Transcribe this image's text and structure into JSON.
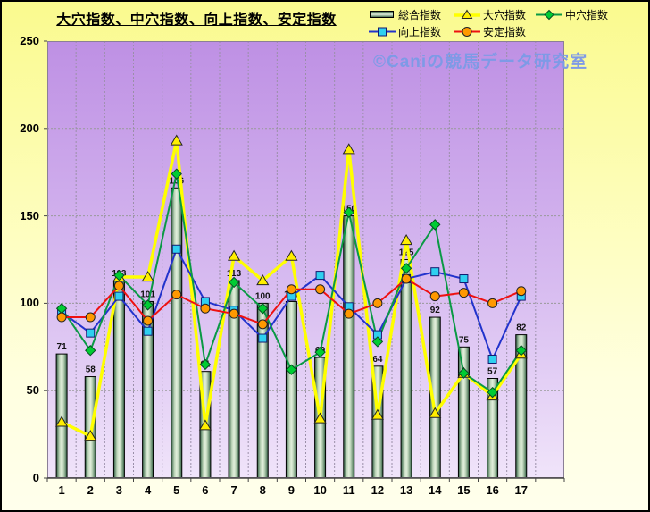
{
  "title": "大穴指数、中穴指数、向上指数、安定指数",
  "watermark": {
    "text": "©Caniの競馬データ研究室",
    "color": "#7e9ae6"
  },
  "chart_data": {
    "type": "bar+line combo",
    "title": "大穴指数、中穴指数、向上指数、安定指数",
    "categories": [
      "1",
      "2",
      "3",
      "4",
      "5",
      "6",
      "7",
      "8",
      "9",
      "10",
      "11",
      "12",
      "13",
      "14",
      "15",
      "16",
      "17"
    ],
    "series": [
      {
        "name": "総合指数",
        "type": "bar",
        "marker": "bar",
        "values": [
          71,
          58,
          113,
          101,
          166,
          61,
          113,
          100,
          101,
          69,
          150,
          64,
          125,
          92,
          75,
          57,
          82
        ],
        "bar_fill": "green gradient",
        "data_labels": true
      },
      {
        "name": "大穴指数",
        "type": "line",
        "marker": "triangle",
        "line_color": "#ffff00",
        "marker_fill": "#ffee00",
        "line_width": 3.5,
        "values": [
          32,
          24,
          115,
          115,
          193,
          30,
          127,
          113,
          127,
          34,
          188,
          36,
          136,
          37,
          60,
          47,
          71
        ]
      },
      {
        "name": "中穴指数",
        "type": "line",
        "marker": "diamond",
        "line_color": "#0a9944",
        "marker_fill": "#00cc33",
        "line_width": 2,
        "values": [
          97,
          73,
          116,
          99,
          174,
          65,
          112,
          97,
          62,
          72,
          152,
          78,
          120,
          145,
          60,
          49,
          73
        ]
      },
      {
        "name": "向上指数",
        "type": "line",
        "marker": "square",
        "line_color": "#2233cc",
        "marker_fill": "#2fd0f0",
        "line_width": 2,
        "values": [
          95,
          83,
          104,
          84,
          131,
          101,
          96,
          80,
          104,
          116,
          98,
          82,
          114,
          118,
          114,
          68,
          104
        ]
      },
      {
        "name": "安定指数",
        "type": "line",
        "marker": "circle",
        "line_color": "#ee1111",
        "marker_fill": "#ff9900",
        "line_width": 2,
        "values": [
          92,
          92,
          110,
          90,
          105,
          97,
          94,
          88,
          108,
          108,
          94,
          100,
          114,
          104,
          106,
          100,
          107
        ]
      }
    ],
    "ylim": [
      0,
      250
    ],
    "y_ticks": [
      0,
      50,
      100,
      150,
      200,
      250
    ],
    "x_slots": 18,
    "grid": "dashed gray, horizontal and vertical",
    "legend_position": "top-right, two rows",
    "plot_bg": "purple vertical gradient",
    "outer_bg": "pale yellow vertical gradient"
  },
  "colors": {
    "plot_top": "#be90e4",
    "plot_bottom": "#f0e4fa",
    "bg_top": "#fafa8e",
    "bg_bottom": "#ffffec",
    "grid": "#999999",
    "axis": "#555555",
    "text": "#000000"
  }
}
